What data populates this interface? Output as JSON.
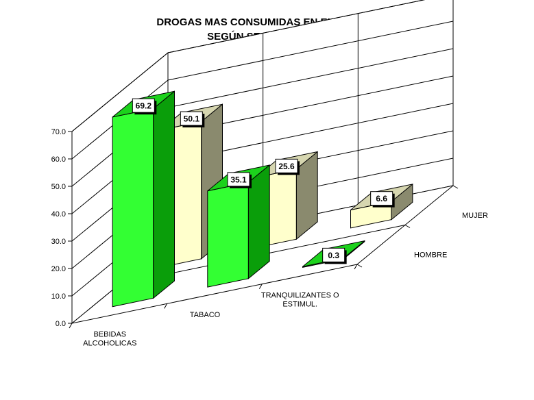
{
  "chart_data": {
    "type": "bar",
    "title": [
      "DROGAS MAS CONSUMIDAS EN EL HOGAR,",
      "SEGÚN SEXO DEL JEFE"
    ],
    "categories": [
      [
        "BEBIDAS",
        "ALCOHOLICAS"
      ],
      [
        "TABACO"
      ],
      [
        "TRANQUILIZANTES O",
        "ESTIMUL."
      ]
    ],
    "series": [
      {
        "name": "HOMBRE",
        "values": [
          69.2,
          35.1,
          0.3
        ]
      },
      {
        "name": "MUJER",
        "values": [
          50.1,
          25.6,
          6.6
        ]
      }
    ],
    "y_ticks": [
      "0.0",
      "10.0",
      "20.0",
      "30.0",
      "40.0",
      "50.0",
      "60.0",
      "70.0"
    ],
    "ylim": [
      0,
      70
    ],
    "value_labels": [
      "69.2",
      "35.1",
      "0.3",
      "50.1",
      "25.6",
      "6.6"
    ],
    "grid": true,
    "projection": "3d",
    "colors": {
      "HOMBRE": {
        "front": "#33ff33",
        "side": "#0a9e0a",
        "top": "#1cd21c"
      },
      "MUJER": {
        "front": "#ffffcc",
        "side": "#8a8a6e",
        "top": "#d6d6b0"
      }
    }
  }
}
